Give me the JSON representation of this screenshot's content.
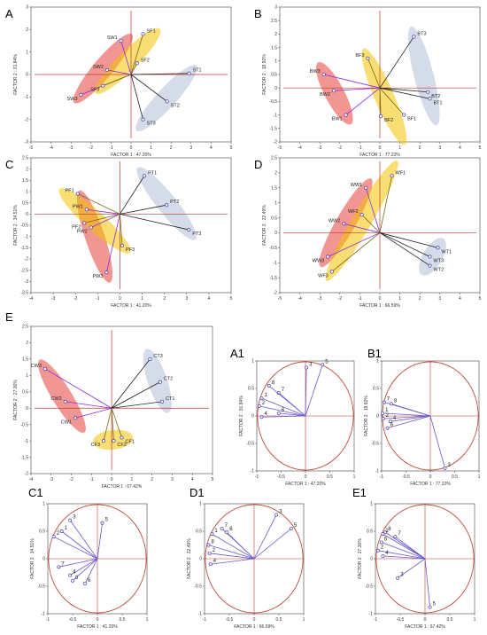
{
  "chart_data": [
    {
      "panel_label": "A",
      "type": "scatter",
      "xlabel": "FACTOR 1 : 47.20%",
      "ylabel": "FACTOR 2 : 31.84%",
      "xlim": [
        -5,
        5
      ],
      "ylim": [
        -3,
        3
      ],
      "xticks": [
        -5,
        -4,
        -3,
        -2,
        -1,
        0,
        1,
        2,
        3,
        4,
        5
      ],
      "yticks": [
        -3,
        -2,
        -1,
        0,
        1,
        2,
        3
      ],
      "groups": [
        {
          "color": "#e8403a",
          "points": [
            {
              "label": "SW1",
              "x": -0.5,
              "y": 1.5
            },
            {
              "label": "SW2",
              "x": -1.2,
              "y": 0.2
            },
            {
              "label": "SW3",
              "x": -2.5,
              "y": -0.9
            }
          ]
        },
        {
          "color": "#f2c200",
          "points": [
            {
              "label": "SF1",
              "x": 0.6,
              "y": 1.8
            },
            {
              "label": "SF2",
              "x": 0.3,
              "y": 0.5
            },
            {
              "label": "SF3",
              "x": -1.4,
              "y": -0.5
            }
          ]
        },
        {
          "color": "#aebfd6",
          "points": [
            {
              "label": "ST1",
              "x": 2.9,
              "y": 0.05
            },
            {
              "label": "ST2",
              "x": 1.8,
              "y": -1.2
            },
            {
              "label": "ST3",
              "x": 0.6,
              "y": -2.0
            }
          ]
        }
      ]
    },
    {
      "panel_label": "B",
      "type": "scatter",
      "xlabel": "FACTOR 1 : 77.22%",
      "ylabel": "FACTOR 2 : 18.92%",
      "xlim": [
        -5,
        5
      ],
      "ylim": [
        -2,
        3
      ],
      "xticks": [
        -5,
        -4,
        -3,
        -2,
        -1,
        0,
        1,
        2,
        3,
        4,
        5
      ],
      "yticks": [
        -2,
        -1.5,
        -1,
        -0.5,
        0,
        0.5,
        1,
        1.5,
        2,
        2.5,
        3
      ],
      "groups": [
        {
          "color": "#e8403a",
          "points": [
            {
              "label": "BW1",
              "x": -1.7,
              "y": -1.0
            },
            {
              "label": "BW2",
              "x": -2.3,
              "y": -0.1
            },
            {
              "label": "BW3",
              "x": -2.8,
              "y": 0.5
            }
          ]
        },
        {
          "color": "#f2c200",
          "points": [
            {
              "label": "BF1",
              "x": 1.2,
              "y": -1.0
            },
            {
              "label": "BF2",
              "x": 0.05,
              "y": -1.05
            },
            {
              "label": "BF3",
              "x": -0.6,
              "y": 1.1
            }
          ]
        },
        {
          "color": "#aebfd6",
          "points": [
            {
              "label": "BT1",
              "x": 2.5,
              "y": -0.4
            },
            {
              "label": "BT2",
              "x": 2.4,
              "y": -0.15
            },
            {
              "label": "BT3",
              "x": 1.7,
              "y": 1.9
            }
          ]
        }
      ]
    },
    {
      "panel_label": "C",
      "type": "scatter",
      "xlabel": "FACTOR 1 : 41.20%",
      "ylabel": "FACTOR 2 : 34.51%",
      "xlim": [
        -4,
        5
      ],
      "ylim": [
        -3.5,
        2.5
      ],
      "xticks": [
        -4,
        -3,
        -2,
        -1,
        0,
        1,
        2,
        3,
        4,
        5
      ],
      "yticks": [
        -3.5,
        -3,
        -2.5,
        -2,
        -1.5,
        -1,
        -0.5,
        0,
        0.5,
        1,
        1.5,
        2,
        2.5
      ],
      "groups": [
        {
          "color": "#e8403a",
          "points": [
            {
              "label": "PW1",
              "x": -1.5,
              "y": 0.2
            },
            {
              "label": "PW2",
              "x": -1.3,
              "y": -0.6
            },
            {
              "label": "PW3",
              "x": -0.6,
              "y": -2.6
            }
          ]
        },
        {
          "color": "#f2c200",
          "points": [
            {
              "label": "PF1",
              "x": -1.9,
              "y": 0.9
            },
            {
              "label": "PF2",
              "x": -1.6,
              "y": -0.4
            },
            {
              "label": "PF3",
              "x": 0.1,
              "y": -1.4
            }
          ]
        },
        {
          "color": "#aebfd6",
          "points": [
            {
              "label": "PT1",
              "x": 1.1,
              "y": 1.7
            },
            {
              "label": "PT2",
              "x": 2.1,
              "y": 0.4
            },
            {
              "label": "PT3",
              "x": 3.1,
              "y": -0.7
            }
          ]
        }
      ]
    },
    {
      "panel_label": "D",
      "type": "scatter",
      "xlabel": "FACTOR 1 : 66.59%",
      "ylabel": "FACTOR 2 : 22.49%",
      "xlim": [
        -5,
        5
      ],
      "ylim": [
        -2,
        2.5
      ],
      "xticks": [
        -5,
        -4,
        -3,
        -2,
        -1,
        0,
        1,
        2,
        3,
        4,
        5
      ],
      "yticks": [
        -2,
        -1.5,
        -1,
        -0.5,
        0,
        0.5,
        1,
        1.5,
        2,
        2.5
      ],
      "groups": [
        {
          "color": "#e8403a",
          "points": [
            {
              "label": "WW1",
              "x": -0.7,
              "y": 1.5
            },
            {
              "label": "WW2",
              "x": -1.8,
              "y": 0.3
            },
            {
              "label": "WW3",
              "x": -2.6,
              "y": -0.8
            }
          ]
        },
        {
          "color": "#f2c200",
          "points": [
            {
              "label": "WF1",
              "x": 0.6,
              "y": 1.9
            },
            {
              "label": "WF2",
              "x": -0.9,
              "y": 0.6
            },
            {
              "label": "WF3",
              "x": -2.4,
              "y": -1.3
            }
          ]
        },
        {
          "color": "#aebfd6",
          "points": [
            {
              "label": "WT1",
              "x": 2.9,
              "y": -0.5
            },
            {
              "label": "WT2",
              "x": 2.5,
              "y": -1.1
            },
            {
              "label": "WT3",
              "x": 2.5,
              "y": -0.8
            }
          ]
        }
      ]
    },
    {
      "panel_label": "E",
      "type": "scatter",
      "xlabel": "FACTOR 1 : 67.42%",
      "ylabel": "FACTOR 2 : 27.36%",
      "xlim": [
        -4,
        5
      ],
      "ylim": [
        -2,
        2.5
      ],
      "xticks": [
        -4,
        -3,
        -2,
        -1,
        0,
        1,
        2,
        3,
        4,
        5
      ],
      "yticks": [
        -2,
        -1.5,
        -1,
        -0.5,
        0,
        0.5,
        1,
        1.5,
        2,
        2.5
      ],
      "groups": [
        {
          "color": "#e8403a",
          "points": [
            {
              "label": "CW1",
              "x": -1.8,
              "y": -0.3
            },
            {
              "label": "CW2",
              "x": -2.3,
              "y": 0.2
            },
            {
              "label": "CW3",
              "x": -3.3,
              "y": 1.2
            }
          ]
        },
        {
          "color": "#f2c200",
          "points": [
            {
              "label": "CF1",
              "x": 0.5,
              "y": -0.9
            },
            {
              "label": "CF2",
              "x": 0.1,
              "y": -1.0
            },
            {
              "label": "CF3",
              "x": -0.4,
              "y": -1.0
            }
          ]
        },
        {
          "color": "#aebfd6",
          "points": [
            {
              "label": "CT1",
              "x": 2.5,
              "y": 0.2
            },
            {
              "label": "CT2",
              "x": 2.4,
              "y": 0.8
            },
            {
              "label": "CT3",
              "x": 1.9,
              "y": 1.5
            }
          ]
        }
      ]
    },
    {
      "panel_label": "A1",
      "type": "scatter",
      "xlabel": "FACTOR 1 : 47.20%",
      "ylabel": "FACTOR 2 : 31.84%",
      "xlim": [
        -1,
        1
      ],
      "ylim": [
        -1,
        1
      ],
      "xticks": [
        -1.0,
        -0.5,
        0.0,
        0.5,
        1.0
      ],
      "yticks": [
        -1.0,
        -0.5,
        0.0,
        0.5,
        1.0
      ],
      "vectors": [
        {
          "label": "3",
          "x": 0.02,
          "y": 0.88
        },
        {
          "label": "5",
          "x": 0.35,
          "y": 0.93
        },
        {
          "label": "7",
          "x": -0.55,
          "y": 0.42
        },
        {
          "label": "8",
          "x": -0.75,
          "y": 0.55
        },
        {
          "label": "1",
          "x": -0.9,
          "y": 0.32
        },
        {
          "label": "2",
          "x": -0.95,
          "y": 0.18
        },
        {
          "label": "4",
          "x": -0.9,
          "y": -0.02
        },
        {
          "label": "6",
          "x": -0.55,
          "y": 0.05
        }
      ]
    },
    {
      "panel_label": "B1",
      "type": "scatter",
      "xlabel": "FACTOR 1 : 77.22%",
      "ylabel": "FACTOR 2 : 18.92%",
      "xlim": [
        -1,
        1
      ],
      "ylim": [
        -1,
        1
      ],
      "xticks": [
        -1.0,
        -0.5,
        0.0,
        0.5,
        1.0
      ],
      "yticks": [
        -1.0,
        -0.5,
        0.0,
        0.5,
        1.0
      ],
      "vectors": [
        {
          "label": "7",
          "x": -0.95,
          "y": 0.25
        },
        {
          "label": "8",
          "x": -0.8,
          "y": 0.22
        },
        {
          "label": "1",
          "x": -0.98,
          "y": 0.05
        },
        {
          "label": "2",
          "x": -0.97,
          "y": -0.05
        },
        {
          "label": "4",
          "x": -0.82,
          "y": -0.1
        },
        {
          "label": "6",
          "x": -0.88,
          "y": -0.22
        },
        {
          "label": "3",
          "x": 0.3,
          "y": -0.95
        }
      ]
    },
    {
      "panel_label": "C1",
      "type": "scatter",
      "xlabel": "FACTOR 1 : 41.20%",
      "ylabel": "FACTOR 2 : 34.51%",
      "xlim": [
        -1,
        1
      ],
      "ylim": [
        -1,
        1
      ],
      "xticks": [
        -1.0,
        -0.5,
        0.0,
        0.5,
        1.0
      ],
      "yticks": [
        -1.0,
        -0.5,
        0.0,
        0.5,
        1.0
      ],
      "vectors": [
        {
          "label": "3",
          "x": -0.55,
          "y": 0.7
        },
        {
          "label": "5",
          "x": 0.1,
          "y": 0.65
        },
        {
          "label": "1",
          "x": -0.72,
          "y": 0.5
        },
        {
          "label": "2",
          "x": -0.88,
          "y": 0.4
        },
        {
          "label": "7",
          "x": -0.78,
          "y": -0.15
        },
        {
          "label": "4",
          "x": -0.55,
          "y": -0.3
        },
        {
          "label": "6",
          "x": -0.25,
          "y": -0.45
        },
        {
          "label": "8",
          "x": -0.5,
          "y": -0.4
        }
      ]
    },
    {
      "panel_label": "D1",
      "type": "scatter",
      "xlabel": "FACTOR 1 : 66.59%",
      "ylabel": "FACTOR 2 : 22.49%",
      "xlim": [
        -1,
        1
      ],
      "ylim": [
        -1,
        1
      ],
      "xticks": [
        -1.0,
        -0.5,
        0.0,
        0.5,
        1.0
      ],
      "yticks": [
        -1.0,
        -0.5,
        0.0,
        0.5,
        1.0
      ],
      "vectors": [
        {
          "label": "3",
          "x": 0.45,
          "y": 0.8
        },
        {
          "label": "5",
          "x": 0.75,
          "y": 0.55
        },
        {
          "label": "7",
          "x": -0.65,
          "y": 0.55
        },
        {
          "label": "6",
          "x": -0.55,
          "y": 0.48
        },
        {
          "label": "1",
          "x": -0.85,
          "y": 0.45
        },
        {
          "label": "8",
          "x": -0.92,
          "y": 0.25
        },
        {
          "label": "2",
          "x": -0.9,
          "y": 0.1
        },
        {
          "label": "4",
          "x": -0.88,
          "y": -0.1
        }
      ]
    },
    {
      "panel_label": "E1",
      "type": "scatter",
      "xlabel": "FACTOR 1 : 67.42%",
      "ylabel": "FACTOR 2 : 27.36%",
      "xlim": [
        -1,
        1
      ],
      "ylim": [
        -1,
        1
      ],
      "xticks": [
        -1.0,
        -0.5,
        0.0,
        0.5,
        1.0
      ],
      "yticks": [
        -1.0,
        -0.5,
        0.0,
        0.5,
        1.0
      ],
      "vectors": [
        {
          "label": "8",
          "x": -0.8,
          "y": 0.48
        },
        {
          "label": "7",
          "x": -0.6,
          "y": 0.4
        },
        {
          "label": "1",
          "x": -0.85,
          "y": 0.45
        },
        {
          "label": "6",
          "x": -0.88,
          "y": 0.3
        },
        {
          "label": "2",
          "x": -0.95,
          "y": 0.15
        },
        {
          "label": "4",
          "x": -0.85,
          "y": 0.05
        },
        {
          "label": "3",
          "x": -0.55,
          "y": -0.35
        },
        {
          "label": "5",
          "x": 0.1,
          "y": -0.88
        }
      ]
    }
  ]
}
